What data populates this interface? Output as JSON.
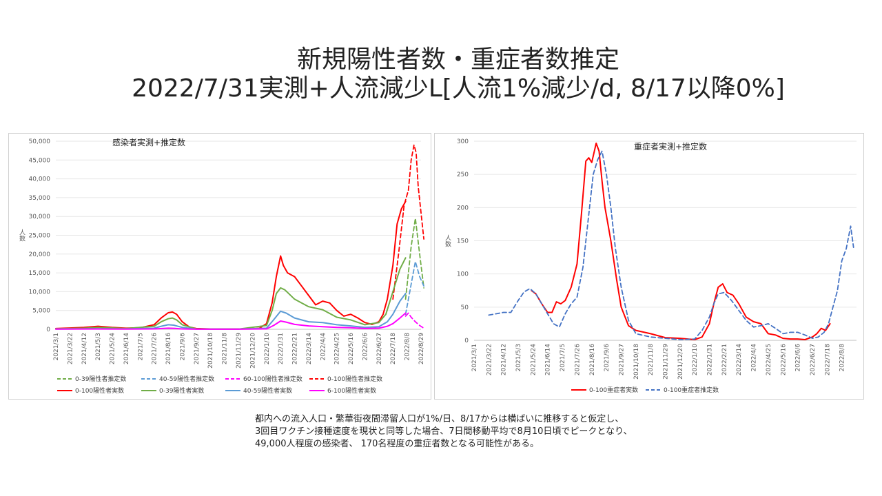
{
  "title": {
    "line1": "新規陽性者数・重症者数推定",
    "line2": "2022/7/31実測+人流減少L[人流1%減少/d, 8/17以降0%]"
  },
  "note": {
    "line1": "都内への流入人口・繁華街夜間滞留人口が1%/日、8/17からは横ばいに推移すると仮定し、",
    "line2": "3回目ワクチン接種速度を現状と同等した場合、7日間移動平均で8月10日頃でピークとなり、",
    "line3": "49,000人程度の感染者、 170名程度の重症者数となる可能性がある。"
  },
  "chart_data": [
    {
      "type": "line",
      "title": "感染者実測+推定数",
      "ylabel": "人数",
      "ylim": [
        0,
        50000
      ],
      "yticks": [
        "0",
        "5,000",
        "10,000",
        "15,000",
        "20,000",
        "25,000",
        "30,000",
        "35,000",
        "40,000",
        "45,000",
        "50,000"
      ],
      "x_labels": [
        "2021/3/1",
        "2021/3/22",
        "2021/4/12",
        "2021/5/3",
        "2021/5/24",
        "2021/6/14",
        "2021/7/5",
        "2021/7/26",
        "2021/8/16",
        "2021/9/6",
        "2021/9/27",
        "2021/10/18",
        "2021/11/8",
        "2021/11/29",
        "2021/12/20",
        "2022/1/10",
        "2022/1/31",
        "2022/2/21",
        "2022/3/14",
        "2022/4/4",
        "2022/4/25",
        "2022/5/16",
        "2022/6/6",
        "2022/6/27",
        "2022/7/18",
        "2022/8/8",
        "2022/8/29"
      ],
      "legend_position": "bottom",
      "series": [
        {
          "name": "0-39陽性者推定数",
          "color": "#70ad47",
          "dash": true,
          "x": [
            24.9,
            25.1,
            25.3,
            25.6,
            25.9,
            26.2
          ],
          "y": [
            8000,
            15000,
            22000,
            29500,
            20000,
            11000
          ]
        },
        {
          "name": "40-59陽性者推定数",
          "color": "#5b9bd5",
          "dash": true,
          "x": [
            24.9,
            25.1,
            25.3,
            25.6,
            25.9,
            26.2
          ],
          "y": [
            4000,
            8000,
            12000,
            18000,
            14000,
            11500
          ]
        },
        {
          "name": "60-100陽性者推定数",
          "color": "#ff00ff",
          "dash": true,
          "x": [
            24.9,
            25.1,
            25.3,
            25.6,
            25.9,
            26.2
          ],
          "y": [
            3500,
            4300,
            3200,
            2000,
            1000,
            300
          ]
        },
        {
          "name": "0-100陽性者推定数",
          "color": "#ff0000",
          "dash": true,
          "x": [
            24.0,
            24.4,
            24.8,
            25.1,
            25.3,
            25.5,
            25.65,
            25.8,
            26.0,
            26.2
          ],
          "y": [
            8000,
            20000,
            33000,
            37000,
            45000,
            49000,
            47000,
            38000,
            31000,
            24000
          ]
        },
        {
          "name": "0-100陽性者実数",
          "color": "#ff0000",
          "dash": false,
          "x": [
            0,
            1,
            2,
            3,
            4,
            5,
            6,
            7,
            7.5,
            8,
            8.3,
            8.6,
            9,
            9.5,
            10,
            11,
            12,
            13,
            14,
            14.5,
            15,
            15.4,
            15.7,
            16,
            16.2,
            16.5,
            17,
            17.5,
            18,
            18.5,
            19,
            19.5,
            20,
            20.5,
            21,
            21.5,
            22,
            22.5,
            23,
            23.3,
            23.6,
            24,
            24.3,
            24.6,
            24.9
          ],
          "y": [
            200,
            350,
            500,
            800,
            500,
            300,
            400,
            1200,
            3000,
            4400,
            4600,
            4000,
            2000,
            600,
            200,
            100,
            100,
            100,
            100,
            300,
            1500,
            7000,
            14000,
            19500,
            17000,
            15000,
            14000,
            11500,
            9000,
            6500,
            7500,
            7000,
            5000,
            3500,
            4000,
            3000,
            1800,
            1300,
            2000,
            4000,
            8000,
            17000,
            28000,
            32000,
            34000
          ]
        },
        {
          "name": "0-39陽性者実数",
          "color": "#70ad47",
          "dash": false,
          "x": [
            0,
            2,
            3,
            5,
            7,
            7.5,
            8,
            8.3,
            8.6,
            9,
            10,
            13,
            15,
            15.4,
            15.7,
            16,
            16.3,
            17,
            18,
            19,
            20,
            21,
            22,
            23,
            23.5,
            24,
            24.5,
            24.9
          ],
          "y": [
            150,
            300,
            500,
            200,
            800,
            2000,
            2800,
            3000,
            2500,
            1200,
            100,
            50,
            1000,
            5000,
            9500,
            11000,
            10500,
            8000,
            6000,
            5200,
            3200,
            2500,
            1200,
            1800,
            4000,
            10000,
            16000,
            19000
          ]
        },
        {
          "name": "40-59陽性者実数",
          "color": "#5b9bd5",
          "dash": false,
          "x": [
            0,
            3,
            5,
            7,
            7.5,
            8,
            8.4,
            9,
            10,
            13,
            15,
            15.5,
            16,
            16.4,
            17,
            18,
            19,
            20,
            21,
            22,
            23,
            23.6,
            24,
            24.5,
            24.9
          ],
          "y": [
            50,
            150,
            100,
            300,
            800,
            1200,
            1100,
            500,
            50,
            30,
            300,
            2500,
            4800,
            4300,
            3000,
            2000,
            1800,
            1200,
            900,
            500,
            700,
            2000,
            4000,
            7500,
            9500
          ]
        },
        {
          "name": "6-100陽性者実数",
          "color": "#ff00ff",
          "dash": false,
          "x": [
            0,
            3,
            5,
            7,
            8,
            8.4,
            9,
            10,
            13,
            15,
            15.5,
            16,
            16.4,
            17,
            18,
            19,
            20,
            21,
            22,
            23,
            23.6,
            24,
            24.5,
            24.9
          ],
          "y": [
            30,
            80,
            50,
            100,
            300,
            250,
            100,
            20,
            20,
            100,
            1000,
            2200,
            1900,
            1300,
            900,
            700,
            500,
            400,
            200,
            300,
            800,
            1500,
            3000,
            4300
          ]
        }
      ]
    },
    {
      "type": "line",
      "title": "重症者実測+推定数",
      "ylabel": "人数",
      "ylim": [
        0,
        300
      ],
      "yticks": [
        "0",
        "50",
        "100",
        "150",
        "200",
        "250",
        "300"
      ],
      "x_labels": [
        "2021/3/1",
        "2021/3/22",
        "2021/4/12",
        "2021/5/3",
        "2021/5/24",
        "2021/6/14",
        "2021/7/5",
        "2021/7/26",
        "2021/8/16",
        "2021/9/6",
        "2021/9/27",
        "2021/10/18",
        "2021/11/8",
        "2021/11/29",
        "2021/12/20",
        "2022/1/10",
        "2022/1/31",
        "2022/2/21",
        "2022/3/14",
        "2022/4/4",
        "2022/4/25",
        "2022/5/16",
        "2022/6/6",
        "2022/6/27",
        "2022/7/18",
        "2022/8/8"
      ],
      "legend_position": "bottom",
      "series": [
        {
          "name": "0-100重症者実数",
          "color": "#ff0000",
          "dash": false,
          "x": [
            3.9,
            4.2,
            4.6,
            5.0,
            5.3,
            5.6,
            5.9,
            6.2,
            6.6,
            7.0,
            7.3,
            7.6,
            7.8,
            8.0,
            8.3,
            8.5,
            8.7,
            8.9,
            9.1,
            9.3,
            9.5,
            9.7,
            10.0,
            10.5,
            11.0,
            12.0,
            13.0,
            14.0,
            15.0,
            15.5,
            16.0,
            16.3,
            16.6,
            16.9,
            17.2,
            17.6,
            18.0,
            18.5,
            19.0,
            19.5,
            20.0,
            20.5,
            21.0,
            21.5,
            22.0,
            22.5,
            23.0,
            23.3,
            23.6,
            23.9,
            24.2
          ],
          "y": [
            75,
            70,
            55,
            42,
            42,
            58,
            55,
            60,
            80,
            115,
            190,
            270,
            275,
            268,
            297,
            285,
            240,
            200,
            175,
            150,
            120,
            90,
            50,
            22,
            15,
            10,
            4,
            3,
            1,
            5,
            25,
            55,
            80,
            85,
            72,
            68,
            55,
            35,
            28,
            25,
            10,
            8,
            3,
            2,
            2,
            1,
            5,
            10,
            18,
            15,
            25
          ]
        },
        {
          "name": "0-100重症者推定数",
          "color": "#4472c4",
          "dash": true,
          "x": [
            1.0,
            1.5,
            2.0,
            2.5,
            3.0,
            3.4,
            3.8,
            4.2,
            4.6,
            5.0,
            5.4,
            5.8,
            6.2,
            6.6,
            7.0,
            7.4,
            7.8,
            8.1,
            8.4,
            8.7,
            9.0,
            9.3,
            9.6,
            10.0,
            10.5,
            11.0,
            12.0,
            13.0,
            14.0,
            15.0,
            15.5,
            16.0,
            16.3,
            16.6,
            17.0,
            17.5,
            18.0,
            18.5,
            19.0,
            19.5,
            20.0,
            20.5,
            21.0,
            21.5,
            22.0,
            22.5,
            23.0,
            23.4,
            23.8,
            24.1,
            24.4,
            24.7,
            25.0,
            25.3,
            25.6,
            25.8
          ],
          "y": [
            38,
            40,
            42,
            42,
            60,
            73,
            78,
            70,
            55,
            40,
            25,
            20,
            40,
            55,
            65,
            110,
            190,
            250,
            272,
            285,
            250,
            200,
            140,
            80,
            30,
            10,
            5,
            3,
            1,
            2,
            15,
            35,
            55,
            70,
            72,
            60,
            45,
            30,
            20,
            22,
            25,
            18,
            10,
            12,
            12,
            8,
            3,
            5,
            12,
            25,
            50,
            75,
            120,
            138,
            172,
            140
          ]
        }
      ]
    }
  ]
}
